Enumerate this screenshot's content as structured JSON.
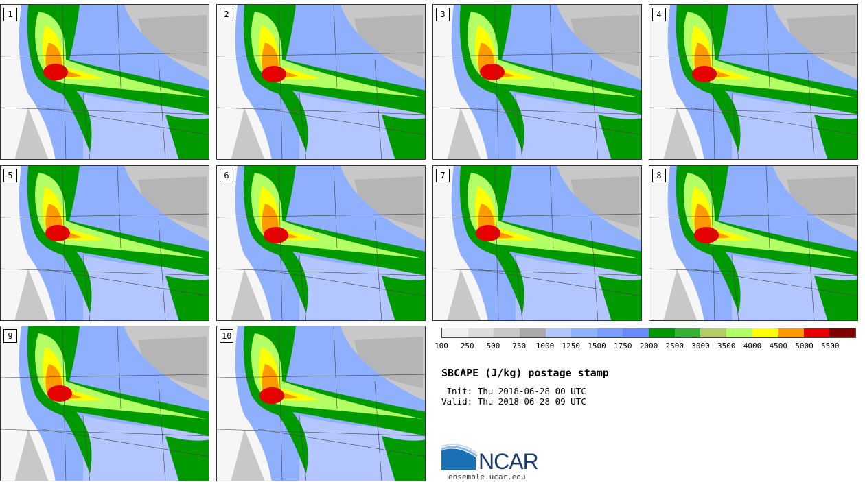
{
  "title": "SBCAPE (J/kg) postage stamp",
  "init_text": " Init: Thu 2018-06-28 00 UTC",
  "valid_text": "Valid: Thu 2018-06-28 09 UTC",
  "panels": [
    "1",
    "2",
    "3",
    "4",
    "5",
    "6",
    "7",
    "8",
    "9",
    "10"
  ],
  "colorbar": {
    "tick_labels": [
      "100",
      "250",
      "500",
      "750",
      "1000",
      "1250",
      "1500",
      "1750",
      "2000",
      "2500",
      "3000",
      "3500",
      "4000",
      "4500",
      "5000",
      "5500"
    ],
    "colors": [
      "#efefef",
      "#dcdcdc",
      "#c8c8c8",
      "#a9a9a9",
      "#b3c6ff",
      "#8fb0ff",
      "#7c9cff",
      "#6a88ff",
      "#009900",
      "#33b233",
      "#b3cc66",
      "#b3ff66",
      "#ffff00",
      "#ff9900",
      "#e60000",
      "#800000"
    ]
  },
  "logo": {
    "name": "NCAR",
    "url": "ensemble.ucar.edu",
    "icon": "ncar-logo-icon"
  }
}
